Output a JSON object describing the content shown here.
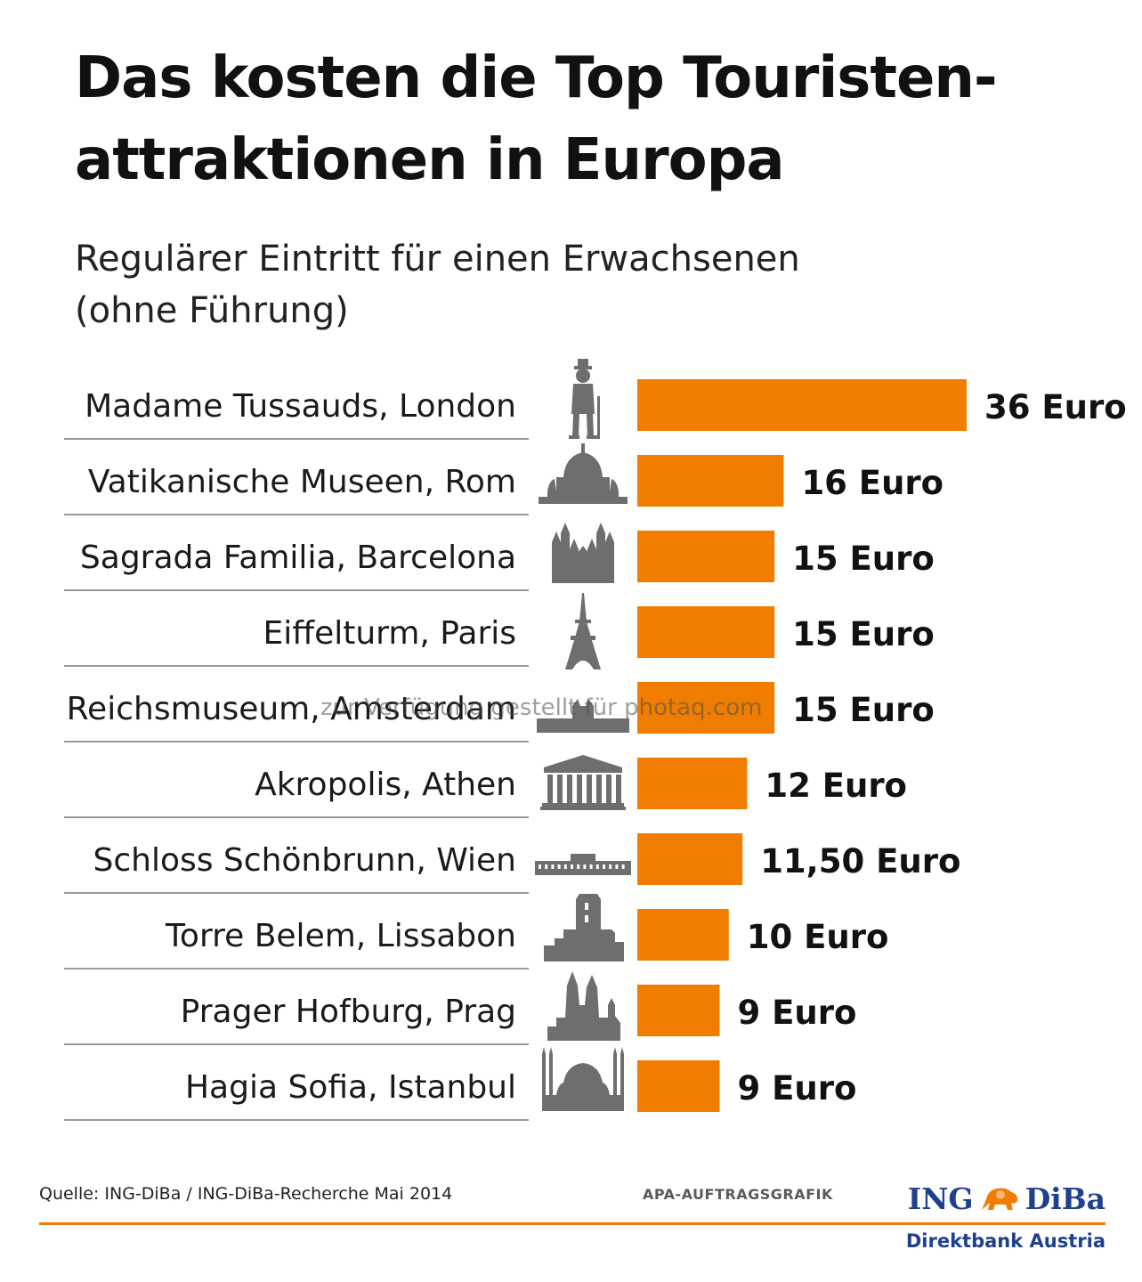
{
  "title_line1": "Das kosten die Top Touristen-",
  "title_line2": "attraktionen in Europa",
  "subtitle_line1": "Regulärer Eintritt für einen Erwachsenen",
  "subtitle_line2": "(ohne Führung)",
  "chart_data": {
    "type": "bar",
    "orientation": "horizontal",
    "title": "Das kosten die Top Touristenattraktionen in Europa",
    "subtitle": "Regulärer Eintritt für einen Erwachsenen (ohne Führung)",
    "categories": [
      "Madame Tussauds, London",
      "Vatikanische Museen, Rom",
      "Sagrada Familia, Barcelona",
      "Eiffelturm, Paris",
      "Reichsmuseum, Amsterdam",
      "Akropolis, Athen",
      "Schloss Schönbrunn, Wien",
      "Torre Belem, Lissabon",
      "Prager Hofburg, Prag",
      "Hagia Sofia, Istanbul"
    ],
    "values": [
      36,
      16,
      15,
      15,
      15,
      12,
      11.5,
      10,
      9,
      9
    ],
    "value_labels": [
      "36 Euro",
      "16 Euro",
      "15 Euro",
      "15 Euro",
      "15 Euro",
      "12 Euro",
      "11,50 Euro",
      "10 Euro",
      "9 Euro",
      "9 Euro"
    ],
    "unit": "Euro",
    "icons": [
      "charlie-chaplin-icon",
      "st-peters-dome-icon",
      "sagrada-familia-icon",
      "eiffel-tower-icon",
      "rijksmuseum-icon",
      "parthenon-icon",
      "schoenbrunn-palace-icon",
      "belem-tower-icon",
      "prague-castle-icon",
      "hagia-sophia-icon"
    ],
    "bar_color": "#f07d00",
    "grid": false,
    "legend": "none"
  },
  "footer": {
    "source": "Quelle: ING-DiBa / ING-DiBa-Recherche Mai 2014",
    "credit": "APA-AUFTRAGSGRAFIK",
    "logo_left": "ING",
    "logo_right": "DiBa",
    "logo_sub": "Direktbank Austria"
  },
  "watermark": "zur Verfügung gestellt für photaq.com",
  "colors": {
    "accent": "#f07d00",
    "brand": "#1f3f8f",
    "icon": "#6e6e6e"
  }
}
